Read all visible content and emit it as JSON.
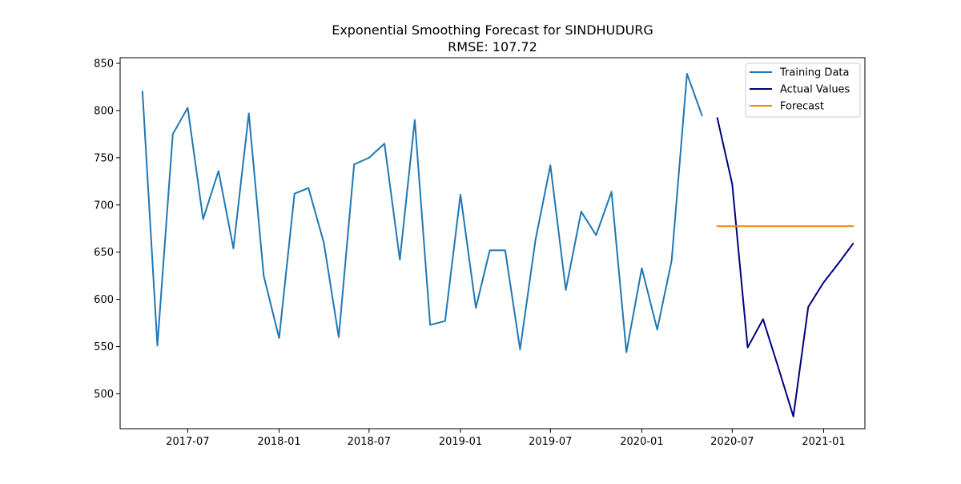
{
  "chart_data": {
    "type": "line",
    "title": "Exponential Smoothing Forecast for SINDHUDURG",
    "subtitle": "RMSE: 107.72",
    "xlabel": "",
    "ylabel": "",
    "x_range": [
      "2017-02-15",
      "2021-03-25"
    ],
    "y_range": [
      463,
      856
    ],
    "y_ticks": [
      500,
      550,
      600,
      650,
      700,
      750,
      800,
      850
    ],
    "x_ticks": [
      {
        "date": "2017-07-01",
        "label": "2017-07"
      },
      {
        "date": "2018-01-01",
        "label": "2018-01"
      },
      {
        "date": "2018-07-01",
        "label": "2018-07"
      },
      {
        "date": "2019-01-01",
        "label": "2019-01"
      },
      {
        "date": "2019-07-01",
        "label": "2019-07"
      },
      {
        "date": "2020-01-01",
        "label": "2020-01"
      },
      {
        "date": "2020-07-01",
        "label": "2020-07"
      },
      {
        "date": "2021-01-01",
        "label": "2021-01"
      }
    ],
    "grid": false,
    "legend_position": "top-right",
    "series": [
      {
        "name": "Training Data",
        "color": "#1f77b4",
        "x": [
          "2017-04-01",
          "2017-05-01",
          "2017-06-01",
          "2017-07-01",
          "2017-08-01",
          "2017-09-01",
          "2017-10-01",
          "2017-11-01",
          "2017-12-01",
          "2018-01-01",
          "2018-02-01",
          "2018-03-01",
          "2018-04-01",
          "2018-05-01",
          "2018-06-01",
          "2018-07-01",
          "2018-08-01",
          "2018-09-01",
          "2018-10-01",
          "2018-11-01",
          "2018-12-01",
          "2019-01-01",
          "2019-02-01",
          "2019-03-01",
          "2019-04-01",
          "2019-05-01",
          "2019-06-01",
          "2019-07-01",
          "2019-08-01",
          "2019-09-01",
          "2019-10-01",
          "2019-11-01",
          "2019-12-01",
          "2020-01-01",
          "2020-02-01",
          "2020-03-01",
          "2020-04-01",
          "2020-05-01"
        ],
        "y": [
          820,
          551,
          775,
          803,
          685,
          736,
          654,
          797,
          625,
          559,
          712,
          718,
          660,
          560,
          743,
          750,
          765,
          642,
          790,
          573,
          577,
          711,
          591,
          652,
          652,
          547,
          663,
          742,
          610,
          693,
          668,
          714,
          544,
          633,
          568,
          641,
          839,
          795
        ]
      },
      {
        "name": "Actual Values",
        "color": "#000080",
        "x": [
          "2020-06-01",
          "2020-07-01",
          "2020-08-01",
          "2020-09-01",
          "2020-10-01",
          "2020-11-01",
          "2020-12-01",
          "2021-01-01",
          "2021-02-01",
          "2021-03-01"
        ],
        "y": [
          792,
          722,
          549,
          579,
          529,
          476,
          592,
          618,
          639,
          659
        ]
      },
      {
        "name": "Forecast",
        "color": "#ff7f0e",
        "x": [
          "2020-06-01",
          "2020-07-01",
          "2020-08-01",
          "2020-09-01",
          "2020-10-01",
          "2020-11-01",
          "2020-12-01",
          "2021-01-01",
          "2021-02-01",
          "2021-03-01"
        ],
        "y": [
          677.5,
          677.5,
          677.5,
          677.5,
          677.5,
          677.5,
          677.5,
          677.5,
          677.5,
          677.5
        ]
      }
    ]
  }
}
